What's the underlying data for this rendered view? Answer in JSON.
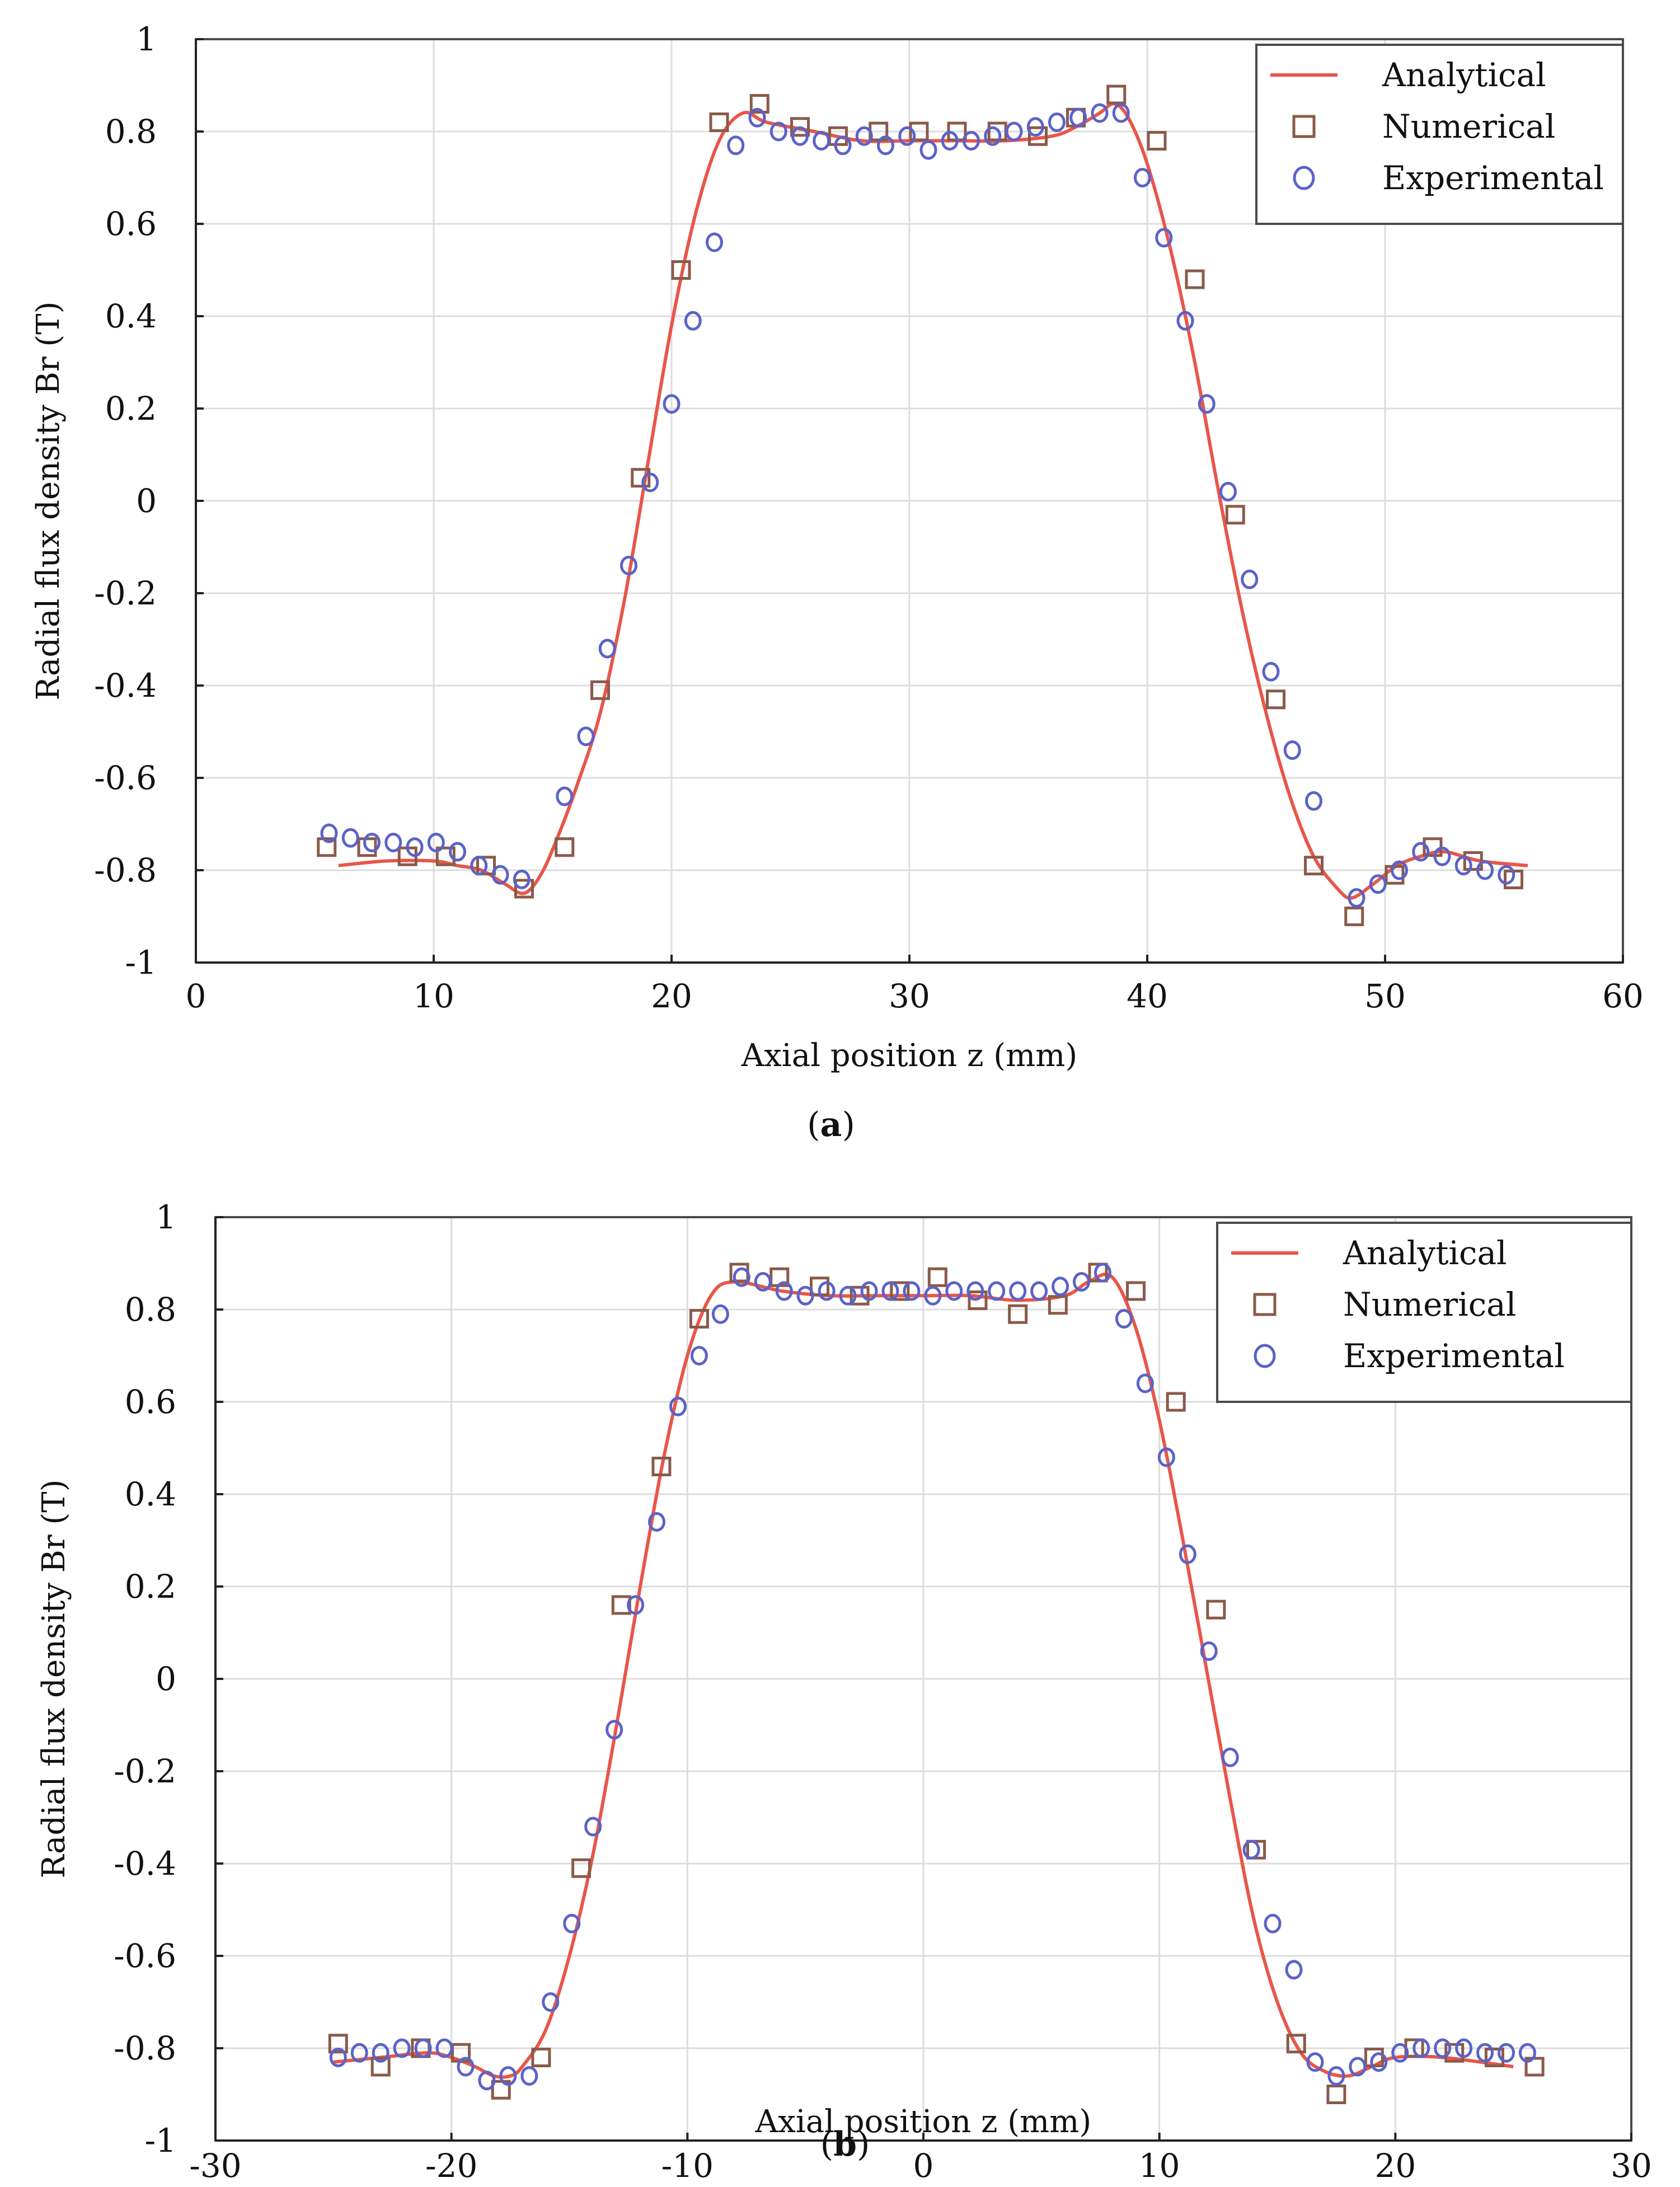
{
  "colors": {
    "analytical": "#e8564a",
    "numerical": "#8a5a4a",
    "experimental": "#5b62c8",
    "grid": "#dcdcdc"
  },
  "chart_data": [
    {
      "type": "line",
      "caption": "(a)",
      "caption_label": "a",
      "xlabel": "Axial position z (mm)",
      "ylabel": "Radial flux density Br (T)",
      "xlim": [
        0,
        60
      ],
      "ylim": [
        -1,
        1
      ],
      "xticks": [
        0,
        10,
        20,
        30,
        40,
        50,
        60
      ],
      "yticks": [
        -1,
        -0.8,
        -0.6,
        -0.4,
        -0.2,
        0,
        0.2,
        0.4,
        0.6,
        0.8,
        1
      ],
      "grid": true,
      "legend_position": "top-right",
      "legend": [
        "Analytical",
        "Numerical",
        "Experimental"
      ],
      "series": [
        {
          "name": "Analytical",
          "style": "line",
          "x": [
            6,
            8,
            10,
            11,
            12,
            13,
            13.8,
            14.5,
            15.2,
            16,
            17,
            18,
            19,
            20,
            21,
            22,
            23,
            24,
            26,
            28,
            30,
            32,
            34,
            36,
            37,
            38,
            38.6,
            39.2,
            40,
            41,
            42,
            43,
            44,
            45,
            46,
            47,
            48,
            48.6,
            49.5,
            50.5,
            51.5,
            52.5,
            54,
            56
          ],
          "y": [
            -0.79,
            -0.78,
            -0.78,
            -0.79,
            -0.8,
            -0.83,
            -0.85,
            -0.81,
            -0.73,
            -0.62,
            -0.46,
            -0.22,
            0.08,
            0.38,
            0.62,
            0.78,
            0.84,
            0.82,
            0.8,
            0.78,
            0.78,
            0.78,
            0.78,
            0.79,
            0.81,
            0.84,
            0.86,
            0.83,
            0.73,
            0.54,
            0.3,
            0.02,
            -0.24,
            -0.46,
            -0.64,
            -0.77,
            -0.84,
            -0.86,
            -0.83,
            -0.79,
            -0.77,
            -0.76,
            -0.78,
            -0.79
          ]
        },
        {
          "name": "Numerical",
          "style": "square",
          "x": [
            5.5,
            7.2,
            8.9,
            10.5,
            12.2,
            13.8,
            15.5,
            17,
            18.7,
            20.4,
            22,
            23.7,
            25.4,
            27,
            28.7,
            30.4,
            32,
            33.7,
            35.4,
            37,
            38.7,
            40.4,
            42,
            43.7,
            45.4,
            47,
            48.7,
            50.4,
            52,
            53.7,
            55.4
          ],
          "y": [
            -0.75,
            -0.75,
            -0.77,
            -0.77,
            -0.79,
            -0.84,
            -0.75,
            -0.41,
            0.05,
            0.5,
            0.82,
            0.86,
            0.81,
            0.79,
            0.8,
            0.8,
            0.8,
            0.8,
            0.79,
            0.83,
            0.88,
            0.78,
            0.48,
            -0.03,
            -0.43,
            -0.79,
            -0.9,
            -0.81,
            -0.75,
            -0.78,
            -0.82
          ]
        },
        {
          "name": "Experimental",
          "style": "circle",
          "x": [
            5.6,
            6.5,
            7.4,
            8.3,
            9.2,
            10.1,
            11,
            11.9,
            12.8,
            13.7,
            15.5,
            16.4,
            17.3,
            18.2,
            19.1,
            20,
            20.9,
            21.8,
            22.7,
            23.6,
            24.5,
            25.4,
            26.3,
            27.2,
            28.1,
            29,
            29.9,
            30.8,
            31.7,
            32.6,
            33.5,
            34.4,
            35.3,
            36.2,
            37.1,
            38,
            38.9,
            39.8,
            40.7,
            41.6,
            42.5,
            43.4,
            44.3,
            45.2,
            46.1,
            47,
            48.8,
            49.7,
            50.6,
            51.5,
            52.4,
            53.3,
            54.2,
            55.1
          ],
          "y": [
            -0.72,
            -0.73,
            -0.74,
            -0.74,
            -0.75,
            -0.74,
            -0.76,
            -0.79,
            -0.81,
            -0.82,
            -0.64,
            -0.51,
            -0.32,
            -0.14,
            0.04,
            0.21,
            0.39,
            0.56,
            0.77,
            0.83,
            0.8,
            0.79,
            0.78,
            0.77,
            0.79,
            0.77,
            0.79,
            0.76,
            0.78,
            0.78,
            0.79,
            0.8,
            0.81,
            0.82,
            0.83,
            0.84,
            0.84,
            0.7,
            0.57,
            0.39,
            0.21,
            0.02,
            -0.17,
            -0.37,
            -0.54,
            -0.65,
            -0.86,
            -0.83,
            -0.8,
            -0.76,
            -0.77,
            -0.79,
            -0.8,
            -0.81
          ]
        }
      ]
    },
    {
      "type": "line",
      "caption": "(b)",
      "caption_label": "b",
      "xlabel": "Axial position z (mm)",
      "ylabel": "Radial flux density Br (T)",
      "xlim": [
        -30,
        30
      ],
      "ylim": [
        -1,
        1
      ],
      "xticks": [
        -30,
        -20,
        -10,
        0,
        10,
        20,
        30
      ],
      "yticks": [
        -1,
        -0.8,
        -0.6,
        -0.4,
        -0.2,
        0,
        0.2,
        0.4,
        0.6,
        0.8,
        1
      ],
      "grid": true,
      "legend_position": "top-right",
      "legend": [
        "Analytical",
        "Numerical",
        "Experimental"
      ],
      "series": [
        {
          "name": "Analytical",
          "style": "line",
          "x": [
            -25,
            -23,
            -21,
            -20,
            -19,
            -18.2,
            -17.5,
            -17,
            -16,
            -15,
            -14,
            -13,
            -12,
            -11,
            -10,
            -9,
            -8,
            -6,
            -4,
            -2,
            0,
            2,
            4,
            6,
            7,
            8,
            9,
            10,
            11,
            12,
            13,
            14,
            15,
            16,
            17,
            18,
            19,
            20,
            22,
            25
          ],
          "y": [
            -0.83,
            -0.82,
            -0.81,
            -0.82,
            -0.84,
            -0.86,
            -0.86,
            -0.84,
            -0.76,
            -0.6,
            -0.38,
            -0.1,
            0.2,
            0.48,
            0.7,
            0.83,
            0.86,
            0.84,
            0.83,
            0.83,
            0.83,
            0.83,
            0.82,
            0.83,
            0.86,
            0.87,
            0.76,
            0.56,
            0.3,
            0.02,
            -0.26,
            -0.52,
            -0.7,
            -0.81,
            -0.85,
            -0.86,
            -0.84,
            -0.82,
            -0.82,
            -0.84
          ]
        },
        {
          "name": "Numerical",
          "style": "square",
          "x": [
            -24.8,
            -23,
            -21.3,
            -19.6,
            -17.9,
            -16.2,
            -14.5,
            -12.8,
            -11.1,
            -9.5,
            -7.8,
            -6.1,
            -4.4,
            -2.7,
            -1,
            0.6,
            2.3,
            4,
            5.7,
            7.4,
            9,
            10.7,
            12.4,
            14.1,
            15.8,
            17.5,
            19.1,
            20.8,
            22.5,
            24.2,
            25.9
          ],
          "y": [
            -0.79,
            -0.84,
            -0.8,
            -0.81,
            -0.89,
            -0.82,
            -0.41,
            0.16,
            0.46,
            0.78,
            0.88,
            0.87,
            0.85,
            0.83,
            0.84,
            0.87,
            0.82,
            0.79,
            0.81,
            0.88,
            0.84,
            0.6,
            0.15,
            -0.37,
            -0.79,
            -0.9,
            -0.82,
            -0.8,
            -0.81,
            -0.82,
            -0.84
          ]
        },
        {
          "name": "Experimental",
          "style": "circle",
          "x": [
            -24.8,
            -23.9,
            -23,
            -22.1,
            -21.2,
            -20.3,
            -19.4,
            -18.5,
            -17.6,
            -16.7,
            -15.8,
            -14.9,
            -14,
            -13.1,
            -12.2,
            -11.3,
            -10.4,
            -9.5,
            -8.6,
            -7.7,
            -6.8,
            -5.9,
            -5,
            -4.1,
            -3.2,
            -2.3,
            -1.4,
            -0.5,
            0.4,
            1.3,
            2.2,
            3.1,
            4,
            4.9,
            5.8,
            6.7,
            7.6,
            8.5,
            9.4,
            10.3,
            11.2,
            12.1,
            13,
            13.9,
            14.8,
            15.7,
            16.6,
            17.5,
            18.4,
            19.3,
            20.2,
            21.1,
            22,
            22.9,
            23.8,
            24.7,
            25.6
          ],
          "y": [
            -0.82,
            -0.81,
            -0.81,
            -0.8,
            -0.8,
            -0.8,
            -0.84,
            -0.87,
            -0.86,
            -0.86,
            -0.7,
            -0.53,
            -0.32,
            -0.11,
            0.16,
            0.34,
            0.59,
            0.7,
            0.79,
            0.87,
            0.86,
            0.84,
            0.83,
            0.84,
            0.83,
            0.84,
            0.84,
            0.84,
            0.83,
            0.84,
            0.84,
            0.84,
            0.84,
            0.84,
            0.85,
            0.86,
            0.88,
            0.78,
            0.64,
            0.48,
            0.27,
            0.06,
            -0.17,
            -0.37,
            -0.53,
            -0.63,
            -0.83,
            -0.86,
            -0.84,
            -0.83,
            -0.81,
            -0.8,
            -0.8,
            -0.8,
            -0.81,
            -0.81,
            -0.81
          ]
        }
      ]
    }
  ]
}
